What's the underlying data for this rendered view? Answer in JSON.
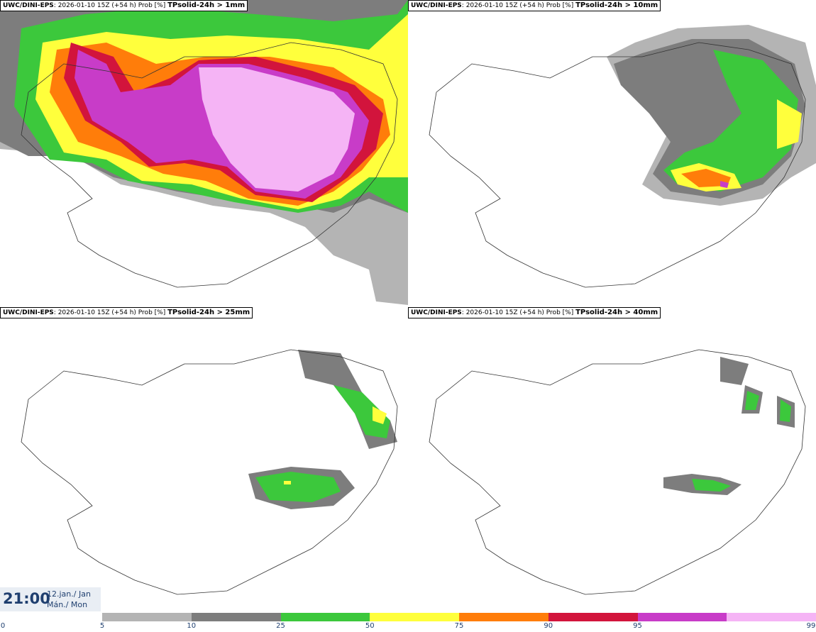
{
  "panels": [
    {
      "model": "UWC/DINI-EPS",
      "run": "2026-01-10 15Z (+54 h) Prob [%]",
      "variable": "TPsolid-24h > 1mm"
    },
    {
      "model": "UWC/DINI-EPS",
      "run": "2026-01-10 15Z (+54 h) Prob [%]",
      "variable": "TPsolid-24h > 10mm"
    },
    {
      "model": "UWC/DINI-EPS",
      "run": "2026-01-10 15Z (+54 h) Prob [%]",
      "variable": "TPsolid-24h > 25mm"
    },
    {
      "model": "UWC/DINI-EPS",
      "run": "2026-01-10 15Z (+54 h) Prob [%]",
      "variable": "TPsolid-24h > 40mm"
    }
  ],
  "valid_time": {
    "time": "21:00",
    "date_line1": "12.jan./ Jan",
    "date_line2": "Mán./ Mon"
  },
  "legend": {
    "ticks": [
      "0",
      "5",
      "10",
      "25",
      "50",
      "75",
      "90",
      "95",
      "99"
    ],
    "colors": [
      "#b4b4b4",
      "#7d7d7d",
      "#3cc83c",
      "#ffff3c",
      "#ff7d0a",
      "#d2143c",
      "#c83cc8",
      "#f5b4f5"
    ]
  }
}
